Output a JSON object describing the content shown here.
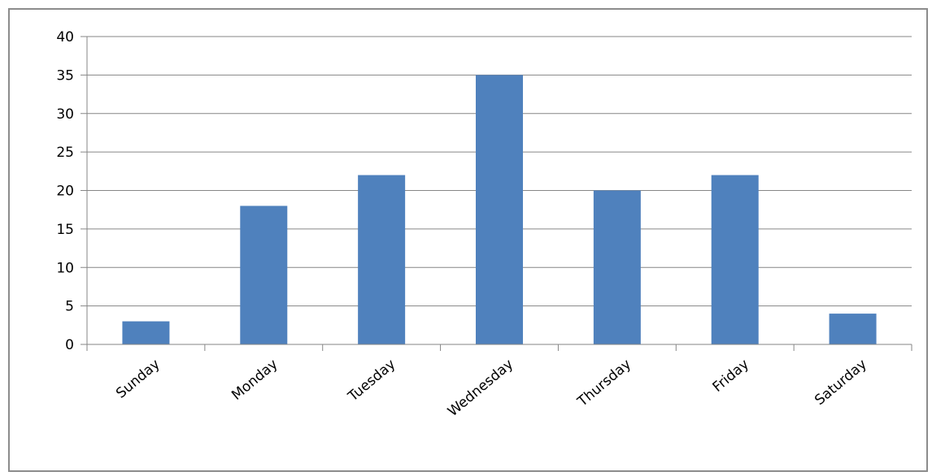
{
  "chart_data": {
    "type": "bar",
    "title": "",
    "xlabel": "",
    "ylabel": "",
    "categories": [
      "Sunday",
      "Monday",
      "Tuesday",
      "Wednesday",
      "Thursday",
      "Friday",
      "Saturday"
    ],
    "values": [
      3,
      18,
      22,
      35,
      20,
      22,
      4
    ],
    "ylim": [
      0,
      40
    ],
    "yticks": [
      "0",
      "5",
      "10",
      "15",
      "20",
      "25",
      "30",
      "35",
      "40"
    ],
    "grid": true,
    "legend": "none",
    "bar_color": "#4f81bd",
    "grid_color": "#868686",
    "axis_color": "#868686"
  }
}
